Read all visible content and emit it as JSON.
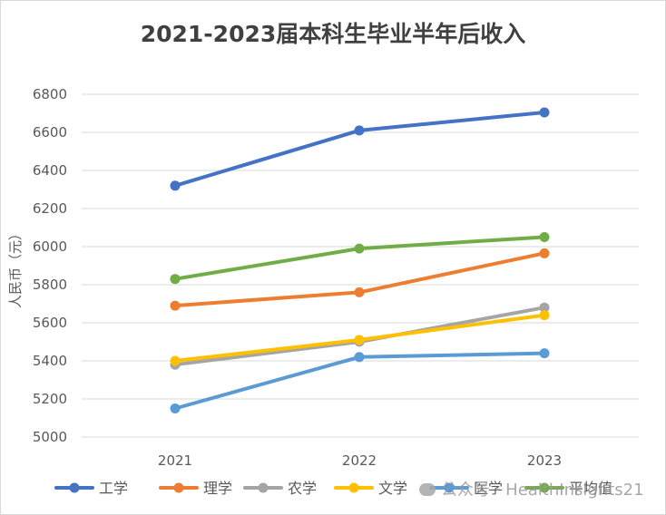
{
  "chart_data": {
    "type": "line",
    "title": "2021-2023届本科生毕业半年后收入",
    "ylabel": "人民币（元）",
    "xlabel": "",
    "categories": [
      "2021",
      "2022",
      "2023"
    ],
    "ylim": [
      5000,
      6800
    ],
    "yticks": [
      5000,
      5200,
      5400,
      5600,
      5800,
      6000,
      6200,
      6400,
      6600,
      6800
    ],
    "grid": true,
    "legend_position": "bottom",
    "series": [
      {
        "name": "工学",
        "values": [
          6320,
          6610,
          6705
        ],
        "color": "#4472c4"
      },
      {
        "name": "理学",
        "values": [
          5690,
          5760,
          5965
        ],
        "color": "#ed7d31"
      },
      {
        "name": "农学",
        "values": [
          5380,
          5500,
          5680
        ],
        "color": "#a5a5a5"
      },
      {
        "name": "文学",
        "values": [
          5400,
          5510,
          5640
        ],
        "color": "#ffc000"
      },
      {
        "name": "医学",
        "values": [
          5150,
          5420,
          5440
        ],
        "color": "#5b9bd5"
      },
      {
        "name": "平均值",
        "values": [
          5830,
          5990,
          6050
        ],
        "color": "#70ad47"
      }
    ]
  },
  "watermark": {
    "text": "公众号 · HealthInsights21",
    "icon": "wechat-icon"
  }
}
